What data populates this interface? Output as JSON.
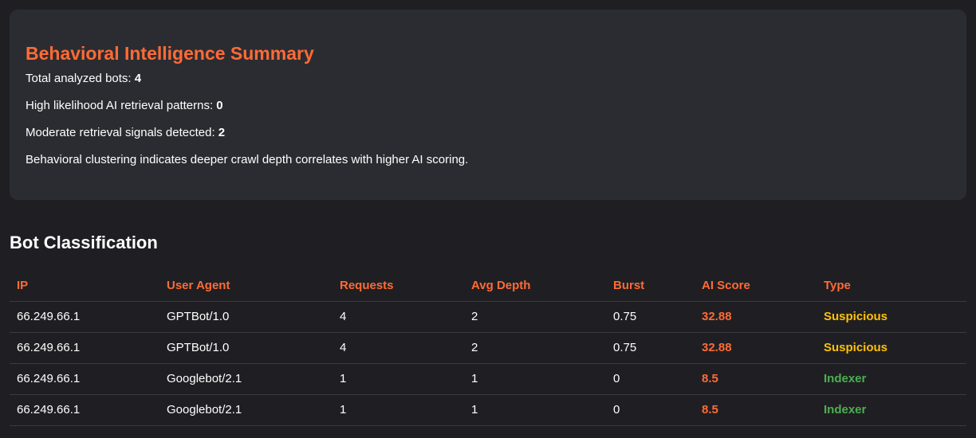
{
  "summary": {
    "title": "Behavioral Intelligence Summary",
    "lines": [
      {
        "label": "Total analyzed bots: ",
        "value": "4"
      },
      {
        "label": "High likelihood AI retrieval patterns: ",
        "value": "0"
      },
      {
        "label": "Moderate retrieval signals detected: ",
        "value": "2"
      }
    ],
    "note": "Behavioral clustering indicates deeper crawl depth correlates with higher AI scoring."
  },
  "classification": {
    "title": "Bot Classification",
    "columns": [
      "IP",
      "User Agent",
      "Requests",
      "Avg Depth",
      "Burst",
      "AI Score",
      "Type"
    ],
    "rows": [
      {
        "ip": "66.249.66.1",
        "agent": "GPTBot/1.0",
        "requests": "4",
        "depth": "2",
        "burst": "0.75",
        "score": "32.88",
        "type": "Suspicious"
      },
      {
        "ip": "66.249.66.1",
        "agent": "GPTBot/1.0",
        "requests": "4",
        "depth": "2",
        "burst": "0.75",
        "score": "32.88",
        "type": "Suspicious"
      },
      {
        "ip": "66.249.66.1",
        "agent": "Googlebot/2.1",
        "requests": "1",
        "depth": "1",
        "burst": "0",
        "score": "8.5",
        "type": "Indexer"
      },
      {
        "ip": "66.249.66.1",
        "agent": "Googlebot/2.1",
        "requests": "1",
        "depth": "1",
        "burst": "0",
        "score": "8.5",
        "type": "Indexer"
      }
    ]
  },
  "colors": {
    "accent": "#ff6b35",
    "suspicious": "#ffc107",
    "indexer": "#4caf50",
    "background": "#1f1f23",
    "card": "#2b2c31"
  }
}
